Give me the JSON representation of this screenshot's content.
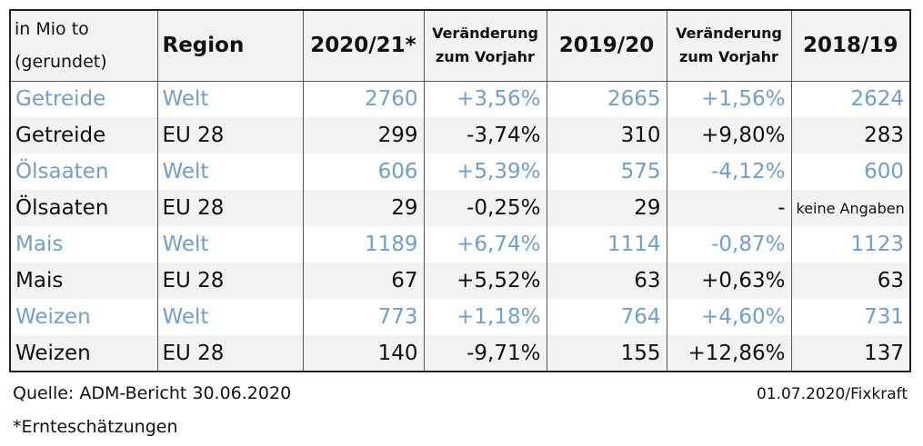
{
  "table": {
    "header": {
      "unit_line1": "in Mio to",
      "unit_line2": "(gerundet)",
      "region": "Region",
      "year_2020_21": "2020/21*",
      "change_1_line1": "Veränderung",
      "change_1_line2": "zum Vorjahr",
      "year_2019_20": "2019/20",
      "change_2_line1": "Veränderung",
      "change_2_line2": "zum Vorjahr",
      "year_2018_19": "2018/19"
    },
    "rows": [
      {
        "product": "Getreide",
        "region": "Welt",
        "v2021": "2760",
        "ch1": "+3,56%",
        "v1920": "2665",
        "ch2": "+1,56%",
        "v1819": "2624"
      },
      {
        "product": "Getreide",
        "region": "EU 28",
        "v2021": "299",
        "ch1": "-3,74%",
        "v1920": "310",
        "ch2": "+9,80%",
        "v1819": "283"
      },
      {
        "product": "Ölsaaten",
        "region": "Welt",
        "v2021": "606",
        "ch1": "+5,39%",
        "v1920": "575",
        "ch2": "-4,12%",
        "v1819": "600"
      },
      {
        "product": "Ölsaaten",
        "region": "EU 28",
        "v2021": "29",
        "ch1": "-0,25%",
        "v1920": "29",
        "ch2": "-",
        "v1819": "keine Angaben"
      },
      {
        "product": "Mais",
        "region": "Welt",
        "v2021": "1189",
        "ch1": "+6,74%",
        "v1920": "1114",
        "ch2": "-0,87%",
        "v1819": "1123"
      },
      {
        "product": "Mais",
        "region": "EU 28",
        "v2021": "67",
        "ch1": "+5,52%",
        "v1920": "63",
        "ch2": "+0,63%",
        "v1819": "63"
      },
      {
        "product": "Weizen",
        "region": "Welt",
        "v2021": "773",
        "ch1": "+1,18%",
        "v1920": "764",
        "ch2": "+4,60%",
        "v1819": "731"
      },
      {
        "product": "Weizen",
        "region": "EU 28",
        "v2021": "140",
        "ch1": "-9,71%",
        "v1920": "155",
        "ch2": "+12,86%",
        "v1819": "137"
      }
    ]
  },
  "colors": {
    "welt_text": "#6f9fca",
    "eu_text": "#111111",
    "header_bg": "#f2f2f2"
  },
  "footer": {
    "source": "Quelle: ADM-Bericht 30.06.2020",
    "stamp": "01.07.2020/Fixkraft",
    "footnote": "*Ernteschätzungen"
  }
}
